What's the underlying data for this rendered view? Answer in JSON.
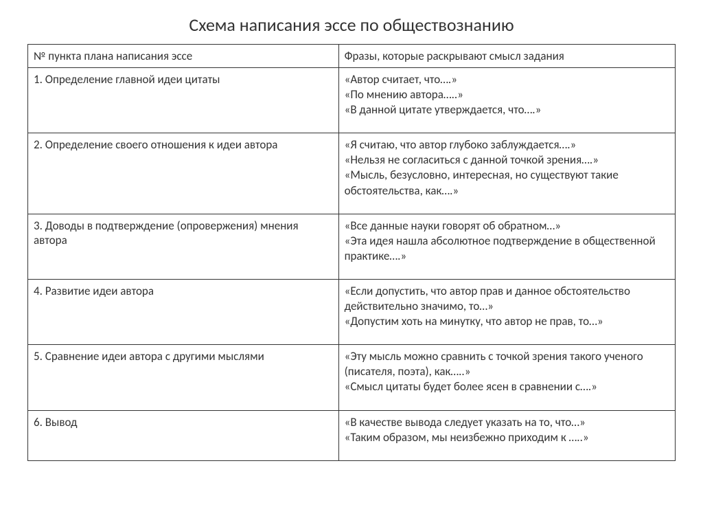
{
  "title": "Схема написания эссе по обществознанию",
  "headers": {
    "col1": "№ пункта плана написания эссе",
    "col2": "Фразы, которые раскрывают смысл задания"
  },
  "rows": [
    {
      "plan": "1. Определение главной идеи цитаты",
      "phrases": [
        "«Автор считает, что….»",
        "«По мнению автора…..»",
        "«В данной цитате утверждается, что….»"
      ]
    },
    {
      "plan": "2. Определение своего отношения к идеи автора",
      "phrases": [
        "«Я считаю, что автор глубоко заблуждается….»",
        "«Нельзя не согласиться с данной точкой зрения….»",
        "«Мысль, безусловно, интересная, но существуют такие обстоятельства, как….»"
      ]
    },
    {
      "plan": "3. Доводы в подтверждение (опровержения) мнения автора",
      "phrases": [
        "«Все данные науки говорят об обратном…»",
        "«Эта идея нашла абсолютное подтверждение в общественной практике….»"
      ]
    },
    {
      "plan": "4. Развитие идеи автора",
      "phrases": [
        "«Если допустить, что автор прав и данное обстоятельство действительно значимо, то…»",
        "«Допустим хоть на минутку, что автор не прав, то…»"
      ]
    },
    {
      "plan": "5. Сравнение идеи автора с другими мыслями",
      "phrases": [
        "«Эту мысль можно сравнить с точкой зрения такого ученого (писателя, поэта), как…..»",
        "«Смысл цитаты будет более ясен в сравнении с….»"
      ]
    },
    {
      "plan": "6. Вывод",
      "phrases": [
        "«В качестве вывода следует указать на то, что…»",
        "«Таким образом, мы неизбежно приходим к …..»"
      ]
    }
  ],
  "style": {
    "background_color": "#ffffff",
    "text_color": "#333333",
    "border_color": "#333333",
    "title_fontsize": 26,
    "body_fontsize": 17,
    "font_family": "Calibri"
  }
}
